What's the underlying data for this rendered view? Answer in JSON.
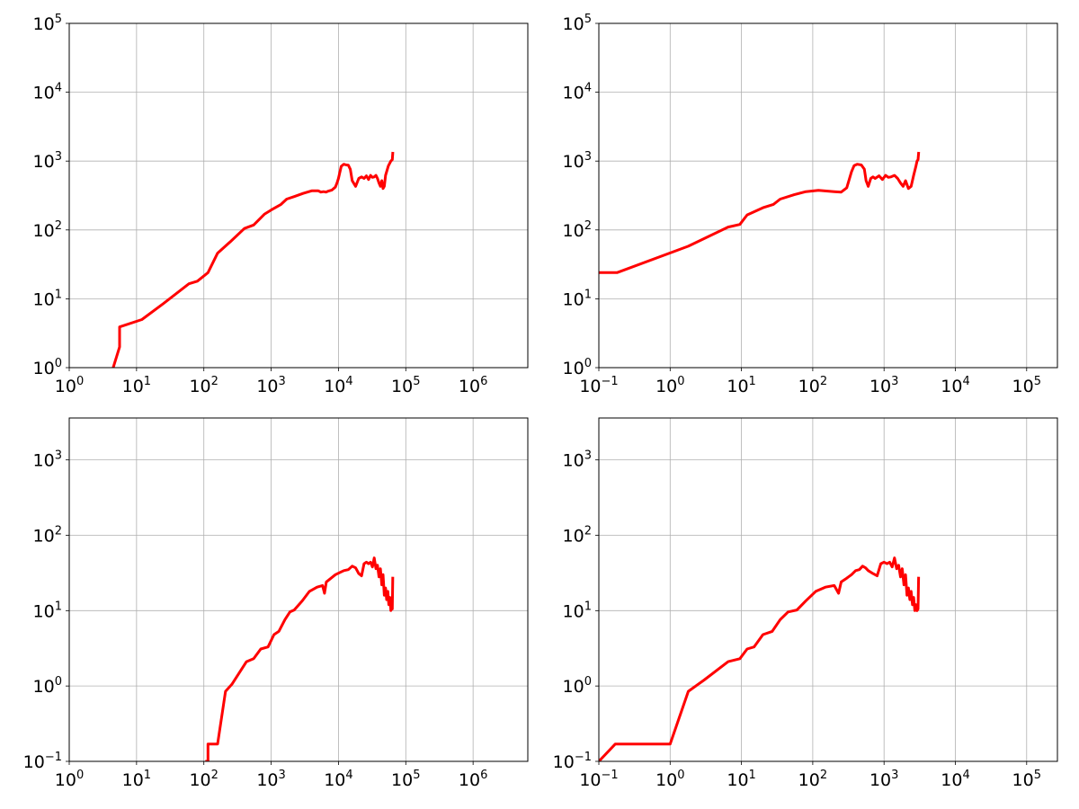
{
  "chart_data": [
    {
      "type": "line",
      "x_scale": "log",
      "y_scale": "log",
      "xlim": [
        1,
        6500000
      ],
      "ylim": [
        1,
        100000
      ],
      "grid": true,
      "x_ticks": [
        {
          "base": "10",
          "exp": "0"
        },
        {
          "base": "10",
          "exp": "1"
        },
        {
          "base": "10",
          "exp": "2"
        },
        {
          "base": "10",
          "exp": "3"
        },
        {
          "base": "10",
          "exp": "4"
        },
        {
          "base": "10",
          "exp": "5"
        },
        {
          "base": "10",
          "exp": "6"
        }
      ],
      "y_ticks": [
        {
          "base": "10",
          "exp": "0"
        },
        {
          "base": "10",
          "exp": "1"
        },
        {
          "base": "10",
          "exp": "2"
        },
        {
          "base": "10",
          "exp": "3"
        },
        {
          "base": "10",
          "exp": "4"
        },
        {
          "base": "10",
          "exp": "5"
        }
      ],
      "series": [
        {
          "color": "#ff0000",
          "x": [
            4.5,
            5.6,
            5.6,
            12,
            25,
            60,
            80,
            115,
            160,
            250,
            400,
            550,
            800,
            1000,
            1400,
            1700,
            2200,
            3000,
            4000,
            5000,
            5500,
            6000,
            6500,
            7000,
            8000,
            9000,
            9500,
            10000,
            11000,
            12000,
            13000,
            14000,
            15000,
            16000,
            18000,
            20000,
            22000,
            24000,
            26000,
            28000,
            30000,
            32000,
            34000,
            36000,
            38000,
            40000,
            42000,
            44000,
            46000,
            48000,
            50000,
            55000,
            60000,
            63000,
            64000
          ],
          "y": [
            1,
            2,
            3.9,
            5,
            8.5,
            16.5,
            18,
            24,
            46,
            68,
            105,
            118,
            170,
            195,
            235,
            280,
            305,
            340,
            370,
            370,
            355,
            360,
            355,
            365,
            380,
            420,
            480,
            560,
            840,
            900,
            880,
            870,
            760,
            520,
            430,
            560,
            590,
            560,
            610,
            540,
            620,
            580,
            590,
            620,
            560,
            480,
            430,
            520,
            400,
            430,
            620,
            850,
            1000,
            1050,
            1300
          ]
        }
      ]
    },
    {
      "type": "line",
      "x_scale": "log",
      "y_scale": "log",
      "xlim": [
        0.1,
        270000
      ],
      "ylim": [
        1,
        100000
      ],
      "grid": true,
      "x_ticks": [
        {
          "base": "10",
          "exp": "−1"
        },
        {
          "base": "10",
          "exp": "0"
        },
        {
          "base": "10",
          "exp": "1"
        },
        {
          "base": "10",
          "exp": "2"
        },
        {
          "base": "10",
          "exp": "3"
        },
        {
          "base": "10",
          "exp": "4"
        },
        {
          "base": "10",
          "exp": "5"
        }
      ],
      "y_ticks": [
        {
          "base": "10",
          "exp": "0"
        },
        {
          "base": "10",
          "exp": "1"
        },
        {
          "base": "10",
          "exp": "2"
        },
        {
          "base": "10",
          "exp": "3"
        },
        {
          "base": "10",
          "exp": "4"
        },
        {
          "base": "10",
          "exp": "5"
        }
      ],
      "series": [
        {
          "color": "#ff0000",
          "x": [
            0.1,
            0.18,
            1.8,
            6.5,
            9.5,
            12,
            20,
            28,
            35,
            55,
            80,
            120,
            200,
            250,
            300,
            350,
            380,
            420,
            480,
            530,
            560,
            600,
            650,
            700,
            750,
            850,
            950,
            1050,
            1150,
            1250,
            1400,
            1550,
            1700,
            1850,
            2000,
            2200,
            2400,
            2600,
            2800,
            2900,
            3000,
            3050
          ],
          "y": [
            24,
            24,
            58,
            110,
            120,
            165,
            210,
            235,
            280,
            325,
            360,
            375,
            360,
            355,
            410,
            700,
            860,
            900,
            880,
            760,
            520,
            430,
            560,
            590,
            560,
            610,
            540,
            620,
            580,
            590,
            620,
            560,
            480,
            430,
            520,
            400,
            430,
            620,
            850,
            1000,
            1050,
            1300
          ]
        }
      ]
    },
    {
      "type": "line",
      "x_scale": "log",
      "y_scale": "log",
      "xlim": [
        1,
        6500000
      ],
      "ylim": [
        0.1,
        3600
      ],
      "grid": true,
      "x_ticks": [
        {
          "base": "10",
          "exp": "0"
        },
        {
          "base": "10",
          "exp": "1"
        },
        {
          "base": "10",
          "exp": "2"
        },
        {
          "base": "10",
          "exp": "3"
        },
        {
          "base": "10",
          "exp": "4"
        },
        {
          "base": "10",
          "exp": "5"
        },
        {
          "base": "10",
          "exp": "6"
        }
      ],
      "y_ticks": [
        {
          "base": "10",
          "exp": "−1"
        },
        {
          "base": "10",
          "exp": "0"
        },
        {
          "base": "10",
          "exp": "1"
        },
        {
          "base": "10",
          "exp": "2"
        },
        {
          "base": "10",
          "exp": "3"
        }
      ],
      "series": [
        {
          "color": "#ff0000",
          "x": [
            110,
            115,
            115,
            160,
            210,
            260,
            430,
            550,
            700,
            900,
            1100,
            1300,
            1600,
            1900,
            2200,
            2900,
            3700,
            4800,
            5800,
            6200,
            6600,
            9000,
            12000,
            14000,
            16000,
            18000,
            20000,
            22000,
            24000,
            26000,
            28000,
            30000,
            32000,
            34000,
            36000,
            38000,
            40000,
            42000,
            44000,
            46000,
            48000,
            50000,
            52000,
            54000,
            56000,
            58000,
            60000,
            62000,
            63000,
            64000
          ],
          "y": [
            0.1,
            0.1,
            0.17,
            0.17,
            0.85,
            1.05,
            2.1,
            2.3,
            3.1,
            3.3,
            4.8,
            5.3,
            7.6,
            9.6,
            10.2,
            13.5,
            18,
            20.5,
            21.5,
            17,
            24,
            30,
            34,
            35,
            39,
            37,
            31,
            29,
            42,
            44,
            42,
            44,
            38,
            50,
            36,
            40,
            28,
            36,
            22,
            30,
            16,
            20,
            14,
            18,
            12,
            15,
            10,
            12,
            10.5,
            27
          ]
        }
      ]
    },
    {
      "type": "line",
      "x_scale": "log",
      "y_scale": "log",
      "xlim": [
        0.1,
        270000
      ],
      "ylim": [
        0.1,
        3600
      ],
      "grid": true,
      "x_ticks": [
        {
          "base": "10",
          "exp": "−1"
        },
        {
          "base": "10",
          "exp": "0"
        },
        {
          "base": "10",
          "exp": "1"
        },
        {
          "base": "10",
          "exp": "2"
        },
        {
          "base": "10",
          "exp": "3"
        },
        {
          "base": "10",
          "exp": "4"
        },
        {
          "base": "10",
          "exp": "5"
        }
      ],
      "y_ticks": [
        {
          "base": "10",
          "exp": "−1"
        },
        {
          "base": "10",
          "exp": "0"
        },
        {
          "base": "10",
          "exp": "1"
        },
        {
          "base": "10",
          "exp": "2"
        },
        {
          "base": "10",
          "exp": "3"
        }
      ],
      "series": [
        {
          "color": "#ff0000",
          "x": [
            0.1,
            0.17,
            1.0,
            1.8,
            3.0,
            6.5,
            9.5,
            12,
            15,
            20,
            27,
            35,
            45,
            60,
            80,
            110,
            150,
            200,
            230,
            250,
            300,
            350,
            400,
            450,
            500,
            550,
            600,
            700,
            800,
            900,
            1000,
            1100,
            1200,
            1300,
            1400,
            1500,
            1600,
            1700,
            1800,
            1900,
            2000,
            2100,
            2200,
            2300,
            2400,
            2500,
            2600,
            2700,
            2800,
            2900,
            3000,
            3050
          ],
          "y": [
            0.1,
            0.17,
            0.17,
            0.85,
            1.2,
            2.1,
            2.3,
            3.1,
            3.3,
            4.8,
            5.3,
            7.6,
            9.6,
            10.2,
            13.5,
            18,
            20.5,
            21.5,
            17,
            24,
            27,
            30,
            34,
            35,
            39,
            37,
            34,
            31,
            29,
            42,
            44,
            42,
            44,
            38,
            50,
            36,
            40,
            28,
            36,
            22,
            30,
            16,
            20,
            14,
            18,
            12,
            15,
            10,
            12,
            10,
            10.5,
            27
          ]
        }
      ]
    }
  ]
}
